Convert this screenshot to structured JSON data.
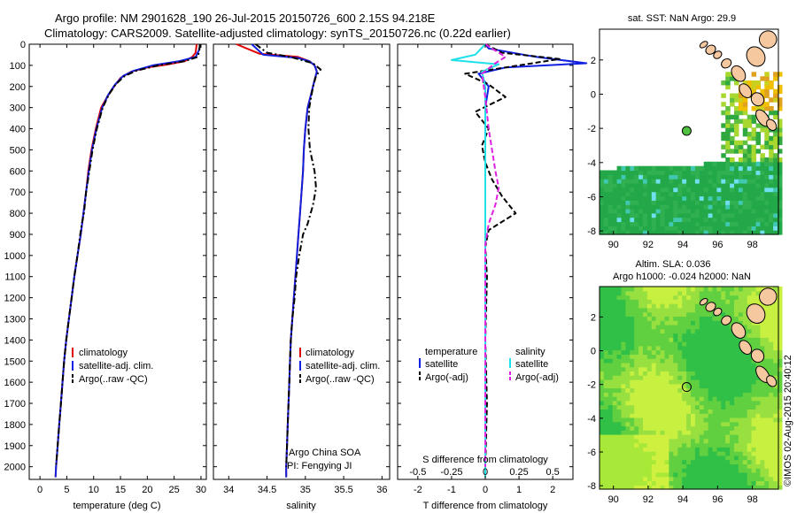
{
  "header": {
    "title_line1": "Argo profile: NM 2901628_190 26-Jul-2015 20150726_600 2.15S 94.218E",
    "title_line2": "Climatology: CARS2009. Satellite-adjusted climatology: synTS_20150726.nc (0.22d earlier)"
  },
  "credit": "©IMOS 02-Aug-2015 20:40:12",
  "colors": {
    "climatology": "#e00000",
    "satellite": "#1020e0",
    "argo": "#000000",
    "cyan": "#20e0e8",
    "magenta": "#e020e0",
    "land": "#f5c8a0"
  },
  "chart_data": [
    {
      "id": "temperature",
      "type": "line",
      "xlabel": "temperature (deg C)",
      "ylabel": "",
      "xlim": [
        -2,
        31
      ],
      "ylim": [
        2060,
        0
      ],
      "xticks": [
        0,
        5,
        10,
        15,
        20,
        25,
        30
      ],
      "yticks": [
        0,
        100,
        200,
        300,
        400,
        500,
        600,
        700,
        800,
        900,
        1000,
        1100,
        1200,
        1300,
        1400,
        1500,
        1600,
        1700,
        1800,
        1900,
        2000
      ],
      "legend": {
        "position": "lower-center",
        "entries": [
          "climatology",
          "satellite-adj. clim.",
          "Argo(..raw -QC)"
        ]
      },
      "series": [
        {
          "name": "climatology",
          "style": "solid",
          "color": "#e00000",
          "points": [
            [
              29.2,
              0
            ],
            [
              29.0,
              40
            ],
            [
              28.4,
              60
            ],
            [
              27.0,
              80
            ],
            [
              24.0,
              95
            ],
            [
              20.0,
              110
            ],
            [
              17.0,
              130
            ],
            [
              15.0,
              160
            ],
            [
              13.8,
              200
            ],
            [
              12.5,
              250
            ],
            [
              11.4,
              300
            ],
            [
              10.4,
              400
            ],
            [
              9.6,
              500
            ],
            [
              9.0,
              600
            ],
            [
              8.6,
              700
            ],
            [
              8.1,
              800
            ],
            [
              7.6,
              900
            ],
            [
              7.0,
              1000
            ],
            [
              6.4,
              1100
            ],
            [
              5.9,
              1200
            ],
            [
              5.4,
              1300
            ],
            [
              4.9,
              1400
            ],
            [
              4.5,
              1500
            ],
            [
              4.2,
              1600
            ],
            [
              3.9,
              1700
            ],
            [
              3.6,
              1800
            ],
            [
              3.3,
              1900
            ],
            [
              3.0,
              2000
            ],
            [
              2.9,
              2050
            ]
          ]
        },
        {
          "name": "satellite-adj. clim.",
          "style": "solid",
          "color": "#1020e0",
          "points": [
            [
              29.9,
              0
            ],
            [
              29.6,
              30
            ],
            [
              29.0,
              60
            ],
            [
              26.0,
              80
            ],
            [
              21.0,
              100
            ],
            [
              17.5,
              125
            ],
            [
              15.5,
              150
            ],
            [
              14.0,
              190
            ],
            [
              12.7,
              240
            ],
            [
              11.6,
              300
            ],
            [
              10.5,
              400
            ],
            [
              9.7,
              500
            ],
            [
              9.1,
              600
            ],
            [
              8.6,
              700
            ],
            [
              8.1,
              800
            ],
            [
              7.6,
              900
            ],
            [
              7.0,
              1000
            ],
            [
              6.4,
              1100
            ],
            [
              5.9,
              1200
            ],
            [
              5.4,
              1300
            ],
            [
              4.9,
              1400
            ],
            [
              4.5,
              1500
            ],
            [
              4.2,
              1600
            ],
            [
              3.9,
              1700
            ],
            [
              3.6,
              1800
            ],
            [
              3.3,
              1900
            ],
            [
              3.0,
              2000
            ],
            [
              2.9,
              2050
            ]
          ]
        },
        {
          "name": "Argo(..raw -QC)",
          "style": "dashdot",
          "color": "#000000",
          "points": [
            [
              29.8,
              0
            ],
            [
              29.7,
              30
            ],
            [
              29.4,
              60
            ],
            [
              27.0,
              80
            ],
            [
              22.0,
              100
            ],
            [
              18.0,
              125
            ],
            [
              15.8,
              150
            ],
            [
              14.1,
              190
            ],
            [
              12.8,
              240
            ],
            [
              11.7,
              300
            ],
            [
              10.6,
              400
            ],
            [
              9.8,
              500
            ],
            [
              9.2,
              600
            ],
            [
              8.6,
              700
            ],
            [
              8.2,
              800
            ],
            [
              7.8,
              850
            ],
            [
              7.5,
              900
            ],
            [
              7.0,
              1000
            ],
            [
              6.4,
              1100
            ],
            [
              5.9,
              1200
            ],
            [
              5.4,
              1300
            ],
            [
              4.9,
              1400
            ],
            [
              4.5,
              1500
            ],
            [
              4.2,
              1600
            ],
            [
              3.9,
              1700
            ],
            [
              3.6,
              1800
            ],
            [
              3.3,
              1900
            ],
            [
              3.0,
              2000
            ]
          ]
        }
      ]
    },
    {
      "id": "salinity",
      "type": "line",
      "xlabel": "salinity",
      "ylabel": "",
      "xlim": [
        33.8,
        36.1
      ],
      "ylim": [
        2060,
        0
      ],
      "xticks": [
        34,
        34.5,
        35,
        35.5,
        36
      ],
      "xticklabels": [
        "34",
        "34.5",
        "35",
        "35.5",
        "36"
      ],
      "annotation": [
        "Argo China SOA",
        "PI: Fengying JI"
      ],
      "legend": {
        "position": "lower-center",
        "entries": [
          "climatology",
          "satellite-adj. clim.",
          "Argo(..raw -QC)"
        ]
      },
      "series": [
        {
          "name": "climatology",
          "style": "solid",
          "color": "#e00000",
          "points": [
            [
              34.1,
              0
            ],
            [
              34.4,
              45
            ],
            [
              34.9,
              60
            ],
            [
              35.05,
              80
            ],
            [
              35.12,
              100
            ],
            [
              35.15,
              130
            ],
            [
              35.12,
              170
            ],
            [
              35.08,
              230
            ],
            [
              35.03,
              300
            ],
            [
              35.0,
              400
            ],
            [
              34.98,
              500
            ],
            [
              34.97,
              600
            ],
            [
              34.95,
              700
            ],
            [
              34.93,
              800
            ],
            [
              34.91,
              900
            ],
            [
              34.89,
              1000
            ],
            [
              34.87,
              1100
            ],
            [
              34.85,
              1200
            ],
            [
              34.83,
              1300
            ],
            [
              34.81,
              1400
            ],
            [
              34.8,
              1500
            ],
            [
              34.79,
              1600
            ],
            [
              34.78,
              1700
            ],
            [
              34.77,
              1800
            ],
            [
              34.76,
              1900
            ],
            [
              34.75,
              2000
            ],
            [
              34.75,
              2050
            ]
          ]
        },
        {
          "name": "satellite-adj. clim.",
          "style": "solid",
          "color": "#1020e0",
          "points": [
            [
              34.3,
              0
            ],
            [
              34.45,
              50
            ],
            [
              34.9,
              65
            ],
            [
              35.05,
              80
            ],
            [
              35.12,
              100
            ],
            [
              35.15,
              130
            ],
            [
              35.12,
              170
            ],
            [
              35.08,
              230
            ],
            [
              35.03,
              300
            ],
            [
              35.0,
              400
            ],
            [
              34.98,
              500
            ],
            [
              34.97,
              600
            ],
            [
              34.95,
              700
            ],
            [
              34.93,
              800
            ],
            [
              34.91,
              900
            ],
            [
              34.89,
              1000
            ],
            [
              34.87,
              1100
            ],
            [
              34.85,
              1200
            ],
            [
              34.83,
              1300
            ],
            [
              34.81,
              1400
            ],
            [
              34.8,
              1500
            ],
            [
              34.79,
              1600
            ],
            [
              34.78,
              1700
            ],
            [
              34.77,
              1800
            ],
            [
              34.76,
              1900
            ],
            [
              34.75,
              2000
            ],
            [
              34.75,
              2050
            ]
          ]
        },
        {
          "name": "Argo(..raw -QC)",
          "style": "dashdot",
          "color": "#000000",
          "points": [
            [
              34.35,
              0
            ],
            [
              34.5,
              40
            ],
            [
              34.8,
              60
            ],
            [
              35.1,
              90
            ],
            [
              35.2,
              120
            ],
            [
              35.14,
              150
            ],
            [
              35.1,
              200
            ],
            [
              35.05,
              300
            ],
            [
              35.04,
              400
            ],
            [
              35.06,
              500
            ],
            [
              35.12,
              600
            ],
            [
              35.14,
              680
            ],
            [
              35.1,
              760
            ],
            [
              35.03,
              850
            ],
            [
              34.97,
              900
            ],
            [
              34.92,
              1000
            ],
            [
              34.88,
              1100
            ],
            [
              34.86,
              1200
            ],
            [
              34.83,
              1300
            ],
            [
              34.81,
              1400
            ],
            [
              34.8,
              1500
            ],
            [
              34.79,
              1600
            ],
            [
              34.78,
              1700
            ],
            [
              34.77,
              1800
            ],
            [
              34.76,
              1900
            ],
            [
              34.75,
              2000
            ]
          ]
        }
      ]
    },
    {
      "id": "difference",
      "type": "line",
      "xlabel": "T difference from climatology",
      "xlabel_top": "S difference from climatology",
      "xlim": [
        -2.6,
        2.6
      ],
      "ylim": [
        2060,
        0
      ],
      "xticks": [
        -2,
        -1,
        0,
        1,
        2
      ],
      "s_ticks": [
        -0.5,
        -0.25,
        0,
        0.25,
        0.5
      ],
      "s_ticklabels": [
        "-0.5",
        "-0.25",
        "0",
        "0.25",
        "0.5"
      ],
      "s_tick_positions_T": [
        -2.0,
        -1.0,
        0,
        1.0,
        2.0
      ],
      "legend": {
        "position": "lower-center",
        "temperature_header": "temperature",
        "salinity_header": "salinity",
        "temperature_entries": [
          "satellite",
          "Argo(-adj)"
        ],
        "salinity_entries": [
          "satellite",
          "Argo(-adj)"
        ]
      },
      "series": [
        {
          "name": "temperature satellite",
          "style": "solid",
          "color": "#1020e0",
          "points": [
            [
              0,
              0
            ],
            [
              0.1,
              20
            ],
            [
              1.5,
              60
            ],
            [
              3.0,
              90
            ],
            [
              0.6,
              110
            ],
            [
              -0.2,
              140
            ],
            [
              0.1,
              200
            ],
            [
              0,
              300
            ],
            [
              0,
              2050
            ]
          ]
        },
        {
          "name": "temperature Argo(-adj)",
          "style": "dashed",
          "color": "#000000",
          "points": [
            [
              0,
              0
            ],
            [
              0.5,
              40
            ],
            [
              2.2,
              70
            ],
            [
              1.0,
              100
            ],
            [
              -0.6,
              140
            ],
            [
              0.1,
              190
            ],
            [
              0.6,
              250
            ],
            [
              -0.3,
              320
            ],
            [
              0.1,
              400
            ],
            [
              -0.1,
              480
            ],
            [
              0,
              560
            ],
            [
              0.2,
              640
            ],
            [
              0.5,
              720
            ],
            [
              0.9,
              800
            ],
            [
              0.1,
              880
            ],
            [
              0,
              960
            ],
            [
              0.05,
              1100
            ],
            [
              0,
              1400
            ],
            [
              0.05,
              1700
            ],
            [
              0,
              2000
            ]
          ]
        },
        {
          "name": "salinity satellite",
          "style": "solid",
          "color": "#20e0e8",
          "points": [
            [
              0,
              0
            ],
            [
              -0.3,
              50
            ],
            [
              -1.0,
              75
            ],
            [
              0.4,
              95
            ],
            [
              -0.1,
              130
            ],
            [
              0,
              200
            ],
            [
              0,
              2050
            ]
          ]
        },
        {
          "name": "salinity Argo(-adj)",
          "style": "dashed",
          "color": "#e020e0",
          "points": [
            [
              0,
              0
            ],
            [
              0.6,
              60
            ],
            [
              0.3,
              90
            ],
            [
              -0.1,
              140
            ],
            [
              0,
              250
            ],
            [
              0.1,
              400
            ],
            [
              0.3,
              600
            ],
            [
              0.4,
              680
            ],
            [
              0.3,
              760
            ],
            [
              0.1,
              850
            ],
            [
              0,
              950
            ],
            [
              0,
              1200
            ],
            [
              0,
              2000
            ]
          ]
        }
      ]
    },
    {
      "id": "sst-map",
      "type": "heatmap",
      "title": "sat. SST: NaN Argo: 29.9",
      "xlim": [
        89.2,
        99.5
      ],
      "ylim": [
        -8.2,
        3.8
      ],
      "xticks": [
        90,
        92,
        94,
        96,
        98
      ],
      "yticks": [
        -8,
        -6,
        -4,
        -2,
        0,
        2
      ],
      "argo_position": [
        94.218,
        -2.15
      ]
    },
    {
      "id": "sla-map",
      "type": "heatmap",
      "title_line1": "Altim. SLA: 0.036",
      "title_line2": "Argo h1000: -0.024 h2000: NaN",
      "xlim": [
        89.2,
        99.5
      ],
      "ylim": [
        -8.2,
        3.8
      ],
      "xticks": [
        90,
        92,
        94,
        96,
        98
      ],
      "yticks": [
        -8,
        -6,
        -4,
        -2,
        0,
        2
      ],
      "argo_position": [
        94.218,
        -2.15
      ]
    }
  ]
}
